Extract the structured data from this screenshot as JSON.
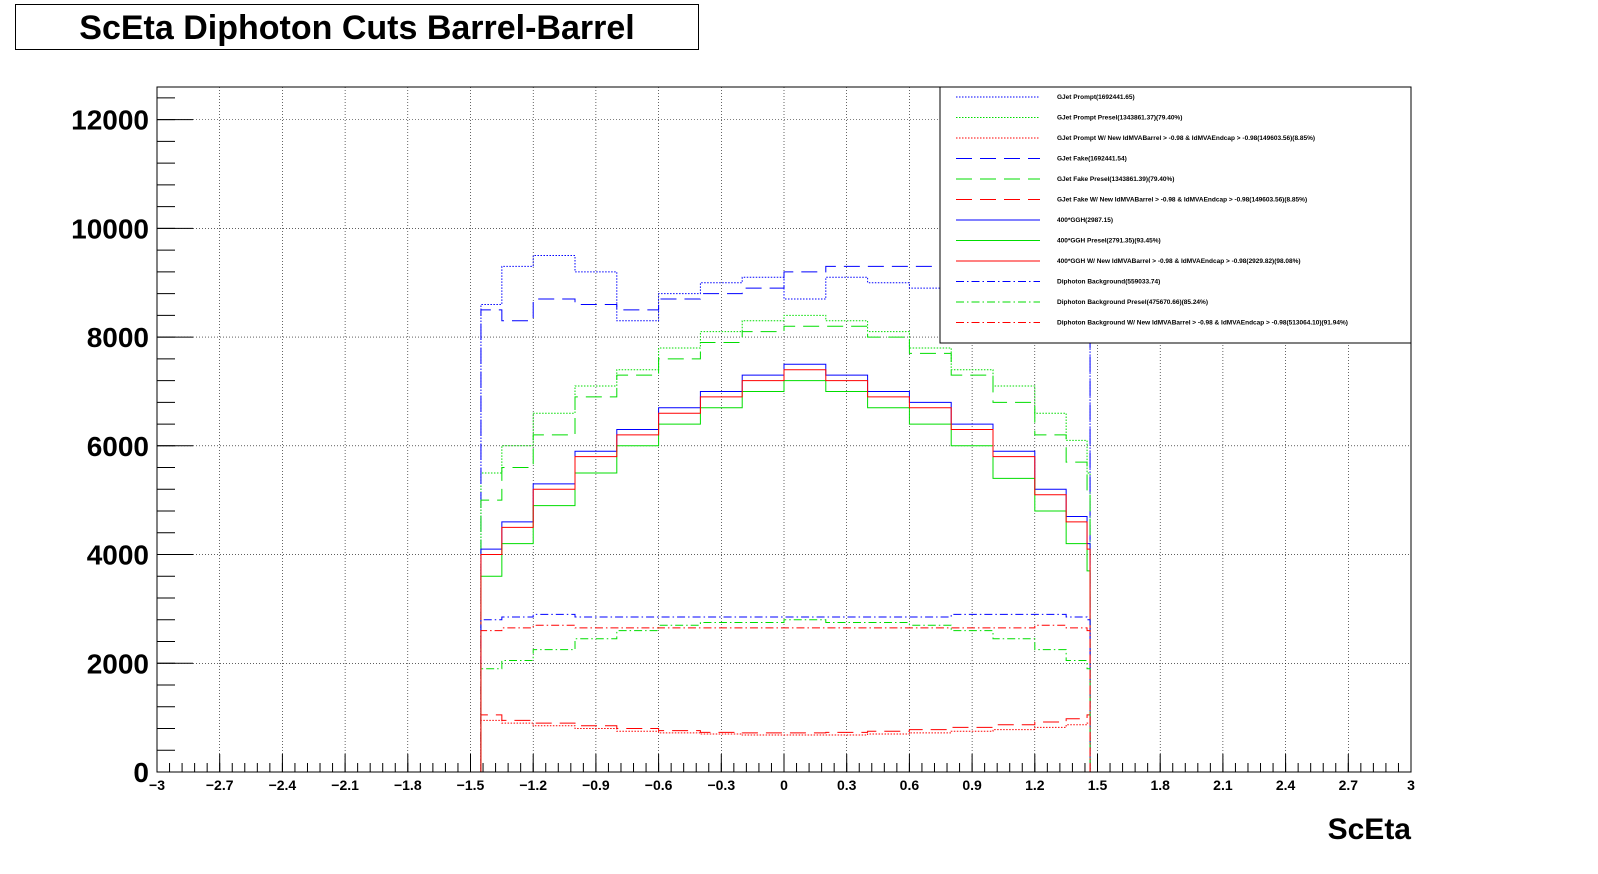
{
  "chart_data": {
    "type": "line",
    "title": "ScEta Diphoton Cuts Barrel-Barrel",
    "xlabel": "ScEta",
    "ylabel": "",
    "xlim": [
      -3,
      3
    ],
    "ylim": [
      0,
      12600
    ],
    "grid": true,
    "legend_position": "top-right",
    "x_ticks": [
      "-3",
      "-2.7",
      "-2.4",
      "-2.1",
      "-1.8",
      "-1.5",
      "-1.2",
      "-0.9",
      "-0.6",
      "-0.3",
      "0",
      "0.3",
      "0.6",
      "0.9",
      "1.2",
      "1.5",
      "1.8",
      "2.1",
      "2.4",
      "2.7",
      "3"
    ],
    "y_ticks": [
      "0",
      "2000",
      "4000",
      "6000",
      "8000",
      "10000",
      "12000"
    ],
    "series": [
      {
        "name": "GJet Prompt(1692441.65)",
        "color": "#0000ff",
        "dash": "dot",
        "x": [
          -1.45,
          -1.35,
          -1.2,
          -1.0,
          -0.8,
          -0.6,
          -0.4,
          -0.2,
          0.0,
          0.2,
          0.4,
          0.6,
          0.8,
          1.0,
          1.2,
          1.35,
          1.45
        ],
        "y": [
          8600,
          9300,
          9500,
          9200,
          8300,
          8800,
          9000,
          9100,
          8700,
          9100,
          9000,
          8900,
          8500,
          9000,
          9200,
          9100,
          8600
        ]
      },
      {
        "name": "GJet Prompt Presel(1343861.37)(79.40%)",
        "color": "#00dd00",
        "dash": "dot",
        "x": [
          -1.45,
          -1.35,
          -1.2,
          -1.0,
          -0.8,
          -0.6,
          -0.4,
          -0.2,
          0.0,
          0.2,
          0.4,
          0.6,
          0.8,
          1.0,
          1.2,
          1.35,
          1.45
        ],
        "y": [
          5500,
          6000,
          6600,
          7100,
          7400,
          7800,
          8100,
          8300,
          8400,
          8300,
          8100,
          7800,
          7400,
          7100,
          6600,
          6100,
          5500
        ]
      },
      {
        "name": "GJet Prompt W/ New IdMVABarrel > -0.98 & IdMVAEndcap > -0.98(149603.56)(8.85%)",
        "color": "#ff0000",
        "dash": "dot",
        "x": [
          -1.45,
          -1.35,
          -1.2,
          -1.0,
          -0.8,
          -0.6,
          -0.4,
          -0.2,
          0.0,
          0.2,
          0.4,
          0.6,
          0.8,
          1.0,
          1.2,
          1.35,
          1.45
        ],
        "y": [
          950,
          900,
          850,
          800,
          750,
          720,
          700,
          680,
          680,
          680,
          700,
          720,
          750,
          780,
          820,
          870,
          900
        ]
      },
      {
        "name": "GJet Fake(1692441.54)",
        "color": "#0000ff",
        "dash": "longdash",
        "x": [
          -1.45,
          -1.35,
          -1.2,
          -1.0,
          -0.8,
          -0.6,
          -0.4,
          -0.2,
          0.0,
          0.2,
          0.4,
          0.6,
          0.8,
          1.0,
          1.2,
          1.35,
          1.45
        ],
        "y": [
          8500,
          8300,
          8700,
          8600,
          8500,
          8700,
          8800,
          8900,
          9200,
          9300,
          9300,
          9300,
          9200,
          9000,
          8800,
          8600,
          8500
        ]
      },
      {
        "name": "GJet Fake Presel(1343861.39)(79.40%)",
        "color": "#00dd00",
        "dash": "longdash",
        "x": [
          -1.45,
          -1.35,
          -1.2,
          -1.0,
          -0.8,
          -0.6,
          -0.4,
          -0.2,
          0.0,
          0.2,
          0.4,
          0.6,
          0.8,
          1.0,
          1.2,
          1.35,
          1.45
        ],
        "y": [
          5000,
          5600,
          6200,
          6900,
          7300,
          7600,
          7900,
          8100,
          8200,
          8200,
          8000,
          7700,
          7300,
          6800,
          6200,
          5700,
          5100
        ]
      },
      {
        "name": "GJet Fake W/ New IdMVABarrel > -0.98 & IdMVAEndcap > -0.98(149603.56)(8.85%)",
        "color": "#ff0000",
        "dash": "longdash",
        "x": [
          -1.45,
          -1.35,
          -1.2,
          -1.0,
          -0.8,
          -0.6,
          -0.4,
          -0.2,
          0.0,
          0.2,
          0.4,
          0.6,
          0.8,
          1.0,
          1.2,
          1.35,
          1.45
        ],
        "y": [
          1050,
          950,
          900,
          850,
          800,
          760,
          730,
          720,
          720,
          730,
          750,
          780,
          820,
          870,
          920,
          980,
          1050
        ]
      },
      {
        "name": "400*GGH(2987.15)",
        "color": "#0000ff",
        "dash": "solid",
        "x": [
          -1.45,
          -1.35,
          -1.2,
          -1.0,
          -0.8,
          -0.6,
          -0.4,
          -0.2,
          0.0,
          0.2,
          0.4,
          0.6,
          0.8,
          1.0,
          1.2,
          1.35,
          1.45
        ],
        "y": [
          4100,
          4600,
          5300,
          5900,
          6300,
          6700,
          7000,
          7300,
          7500,
          7300,
          7000,
          6800,
          6400,
          5900,
          5200,
          4700,
          4200
        ]
      },
      {
        "name": "400*GGH Presel(2791.35)(93.45%)",
        "color": "#00dd00",
        "dash": "solid",
        "x": [
          -1.45,
          -1.35,
          -1.2,
          -1.0,
          -0.8,
          -0.6,
          -0.4,
          -0.2,
          0.0,
          0.2,
          0.4,
          0.6,
          0.8,
          1.0,
          1.2,
          1.35,
          1.45
        ],
        "y": [
          3600,
          4200,
          4900,
          5500,
          6000,
          6400,
          6700,
          7000,
          7200,
          7000,
          6700,
          6400,
          6000,
          5400,
          4800,
          4200,
          3700
        ]
      },
      {
        "name": "400*GGH W/ New IdMVABarrel > -0.98 & IdMVAEndcap > -0.98(2929.82)(98.08%)",
        "color": "#ff0000",
        "dash": "solid",
        "x": [
          -1.45,
          -1.35,
          -1.2,
          -1.0,
          -0.8,
          -0.6,
          -0.4,
          -0.2,
          0.0,
          0.2,
          0.4,
          0.6,
          0.8,
          1.0,
          1.2,
          1.35,
          1.45
        ],
        "y": [
          4000,
          4500,
          5200,
          5800,
          6200,
          6600,
          6900,
          7200,
          7400,
          7200,
          6900,
          6700,
          6300,
          5800,
          5100,
          4600,
          4100
        ]
      },
      {
        "name": "Diphoton Background(559033.74)",
        "color": "#0000ff",
        "dash": "dashdot",
        "x": [
          -1.45,
          -1.35,
          -1.2,
          -1.0,
          -0.8,
          -0.6,
          -0.4,
          -0.2,
          0.0,
          0.2,
          0.4,
          0.6,
          0.8,
          1.0,
          1.2,
          1.35,
          1.45
        ],
        "y": [
          2800,
          2850,
          2900,
          2850,
          2850,
          2850,
          2850,
          2850,
          2850,
          2850,
          2850,
          2850,
          2900,
          2900,
          2900,
          2850,
          2800
        ]
      },
      {
        "name": "Diphoton Background Presel(475670.66)(85.24%)",
        "color": "#00dd00",
        "dash": "dashdot",
        "x": [
          -1.45,
          -1.35,
          -1.2,
          -1.0,
          -0.8,
          -0.6,
          -0.4,
          -0.2,
          0.0,
          0.2,
          0.4,
          0.6,
          0.8,
          1.0,
          1.2,
          1.35,
          1.45
        ],
        "y": [
          1900,
          2050,
          2250,
          2450,
          2600,
          2700,
          2750,
          2750,
          2800,
          2750,
          2750,
          2700,
          2600,
          2450,
          2250,
          2050,
          1900
        ]
      },
      {
        "name": "Diphoton Background W/ New IdMVABarrel > -0.98 & IdMVAEndcap > -0.98(513064.10)(91.94%)",
        "color": "#ff0000",
        "dash": "dashdot",
        "x": [
          -1.45,
          -1.35,
          -1.2,
          -1.0,
          -0.8,
          -0.6,
          -0.4,
          -0.2,
          0.0,
          0.2,
          0.4,
          0.6,
          0.8,
          1.0,
          1.2,
          1.35,
          1.45
        ],
        "y": [
          2600,
          2650,
          2700,
          2650,
          2650,
          2650,
          2650,
          2650,
          2650,
          2650,
          2650,
          2650,
          2650,
          2650,
          2700,
          2650,
          2600
        ]
      }
    ]
  }
}
